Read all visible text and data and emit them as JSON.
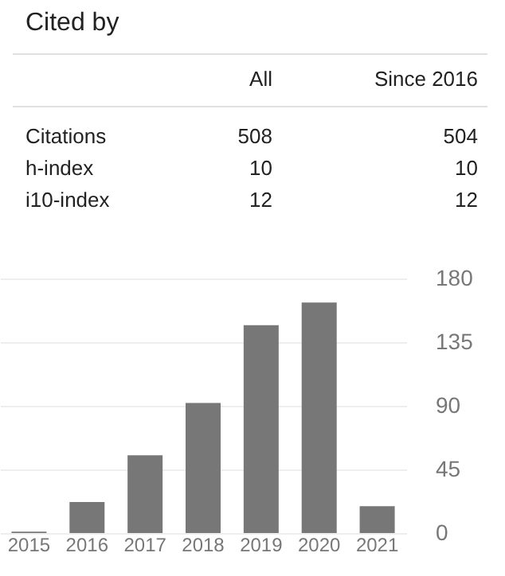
{
  "chart_data": [
    {
      "type": "other",
      "title": "Cited by",
      "annotations": [
        "All",
        "Since 2016",
        "Citations",
        "508",
        "504",
        "h-index",
        "10",
        "10",
        "i10-index",
        "12",
        "12"
      ]
    },
    {
      "type": "bar",
      "categories": [
        "2015",
        "2016",
        "2017",
        "2018",
        "2019",
        "2020",
        "2021"
      ],
      "values": [
        1,
        22,
        55,
        92,
        147,
        163,
        19
      ],
      "color": "#777777",
      "ylim": [
        0,
        180
      ],
      "yticks": [
        0,
        45,
        90,
        135,
        180
      ],
      "grid": "y"
    }
  ]
}
